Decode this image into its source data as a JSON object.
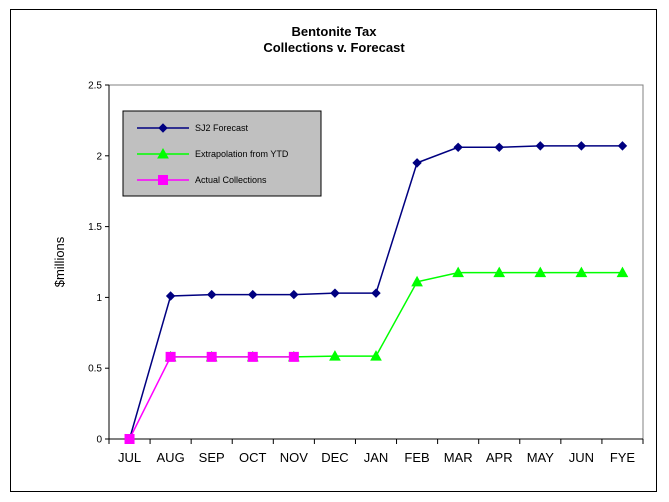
{
  "chart_data": {
    "type": "line",
    "title": "Bentonite Tax",
    "subtitle": "Collections v. Forecast",
    "xlabel": "",
    "ylabel": "$millions",
    "ylim": [
      0,
      2.5
    ],
    "yticks": [
      "0",
      "0.5",
      "1",
      "1.5",
      "2",
      "2.5"
    ],
    "categories": [
      "JUL",
      "AUG",
      "SEP",
      "OCT",
      "NOV",
      "DEC",
      "JAN",
      "FEB",
      "MAR",
      "APR",
      "MAY",
      "JUN",
      "FYE"
    ],
    "grid": false,
    "legend_position": "top-left",
    "series": [
      {
        "name": "SJ2 Forecast",
        "color": "#000080",
        "marker": "diamond",
        "values": [
          0,
          1.01,
          1.02,
          1.02,
          1.02,
          1.03,
          1.03,
          1.95,
          2.06,
          2.06,
          2.07,
          2.07,
          2.07
        ]
      },
      {
        "name": "Extrapolation from YTD",
        "color": "#00ff00",
        "marker": "triangle",
        "values": [
          null,
          0.58,
          0.58,
          0.58,
          0.58,
          0.585,
          0.585,
          1.11,
          1.175,
          1.175,
          1.175,
          1.175,
          1.175
        ]
      },
      {
        "name": "Actual Collections",
        "color": "#ff00ff",
        "marker": "square",
        "values": [
          0,
          0.58,
          0.58,
          0.58,
          0.58,
          null,
          null,
          null,
          null,
          null,
          null,
          null,
          null
        ]
      }
    ]
  }
}
